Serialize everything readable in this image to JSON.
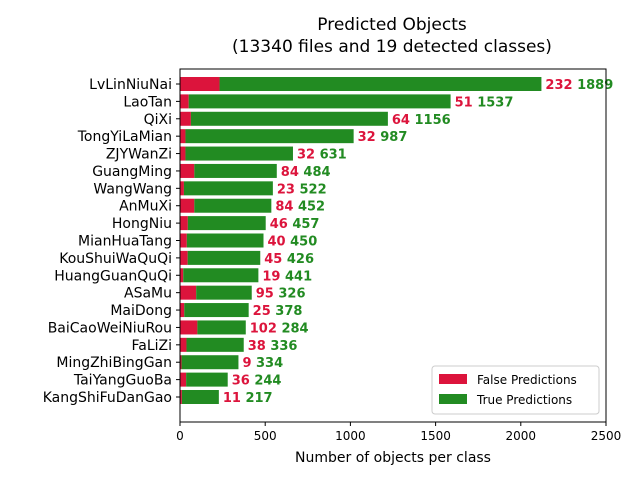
{
  "chart_data": {
    "type": "bar",
    "orientation": "horizontal",
    "stacked": true,
    "title": "Predicted Objects",
    "subtitle": "(13340 files and 19 detected classes)",
    "xlabel": "Number of objects per class",
    "ylabel": "",
    "xlim": [
      0,
      2500
    ],
    "xticks": [
      0,
      500,
      1000,
      1500,
      2000,
      2500
    ],
    "grid": false,
    "legend_position": "bottom-right",
    "categories": [
      "LvLinNiuNai",
      "LaoTan",
      "QiXi",
      "TongYiLaMian",
      "ZJYWanZi",
      "GuangMing",
      "WangWang",
      "AnMuXi",
      "HongNiu",
      "MianHuaTang",
      "KouShuiWaQuQi",
      "HuangGuanQuQi",
      "ASaMu",
      "MaiDong",
      "BaiCaoWeiNiuRou",
      "FaLiZi",
      "MingZhiBingGan",
      "TaiYangGuoBa",
      "KangShiFuDanGao"
    ],
    "series": [
      {
        "name": "False Predictions",
        "color": "#dc143c",
        "values": [
          232,
          51,
          64,
          32,
          32,
          84,
          23,
          84,
          46,
          40,
          45,
          19,
          95,
          25,
          102,
          38,
          9,
          36,
          11
        ]
      },
      {
        "name": "True Predictions",
        "color": "#228b22",
        "values": [
          1889,
          1537,
          1156,
          987,
          631,
          484,
          522,
          452,
          457,
          450,
          426,
          441,
          326,
          378,
          284,
          336,
          334,
          244,
          217
        ]
      }
    ]
  }
}
